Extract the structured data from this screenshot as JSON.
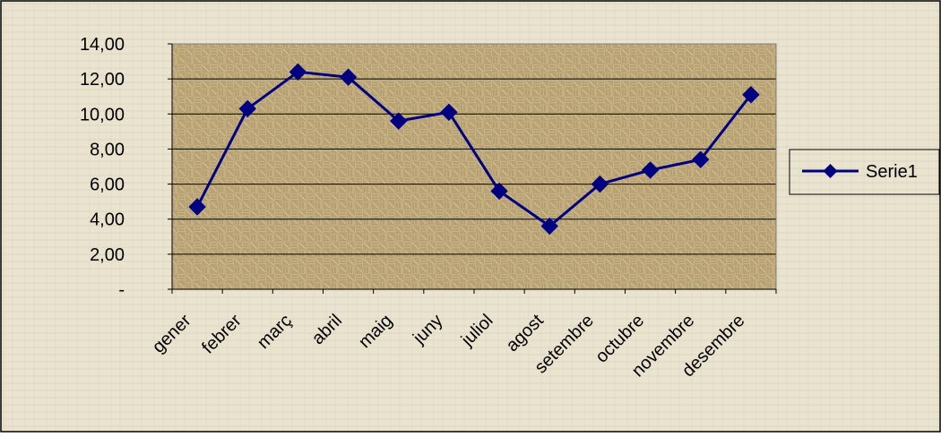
{
  "chart_data": {
    "type": "line",
    "title": "",
    "xlabel": "",
    "ylabel": "",
    "categories": [
      "gener",
      "febrer",
      "març",
      "abril",
      "maig",
      "juny",
      "juliol",
      "agost",
      "setembre",
      "octubre",
      "novembre",
      "desembre"
    ],
    "series": [
      {
        "name": "Serie1",
        "values": [
          4.7,
          10.3,
          12.4,
          12.1,
          9.6,
          10.1,
          5.6,
          3.6,
          6.0,
          6.8,
          7.4,
          11.1
        ],
        "color": "#000080",
        "marker": "diamond"
      }
    ],
    "ylim": [
      0,
      14
    ],
    "yticks": [
      0,
      2,
      4,
      6,
      8,
      10,
      12,
      14
    ],
    "ytick_labels": [
      "-",
      "2,00",
      "4,00",
      "6,00",
      "8,00",
      "10,00",
      "12,00",
      "14,00"
    ],
    "grid": "horizontal",
    "legend_position": "right",
    "colors": {
      "outer_background": "#e8e2cf",
      "plot_background": "#b8a274",
      "gridline": "#000000",
      "line": "#000080"
    }
  }
}
